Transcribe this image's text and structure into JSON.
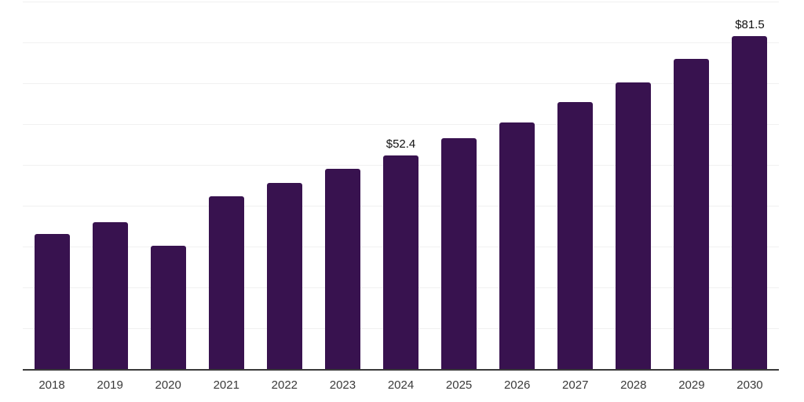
{
  "chart_data": {
    "type": "bar",
    "title": "",
    "xlabel": "",
    "ylabel": "",
    "categories": [
      "2018",
      "2019",
      "2020",
      "2021",
      "2022",
      "2023",
      "2024",
      "2025",
      "2026",
      "2027",
      "2028",
      "2029",
      "2030"
    ],
    "values": [
      33.1,
      36.0,
      30.1,
      42.3,
      45.6,
      49.0,
      52.4,
      56.6,
      60.4,
      65.4,
      70.2,
      75.9,
      81.5
    ],
    "data_labels": {
      "2024": "$52.4",
      "2030": "$81.5"
    },
    "ylim": [
      0,
      90
    ],
    "gridline_step": 10,
    "grid": true,
    "legend": "none",
    "colors": {
      "bar": "#38124f",
      "axis": "#3a3a3a",
      "gridline": "#f1f1f1",
      "data_label_text": "#111111",
      "tick_label_text": "#3a3a3a",
      "background": "#ffffff"
    }
  }
}
